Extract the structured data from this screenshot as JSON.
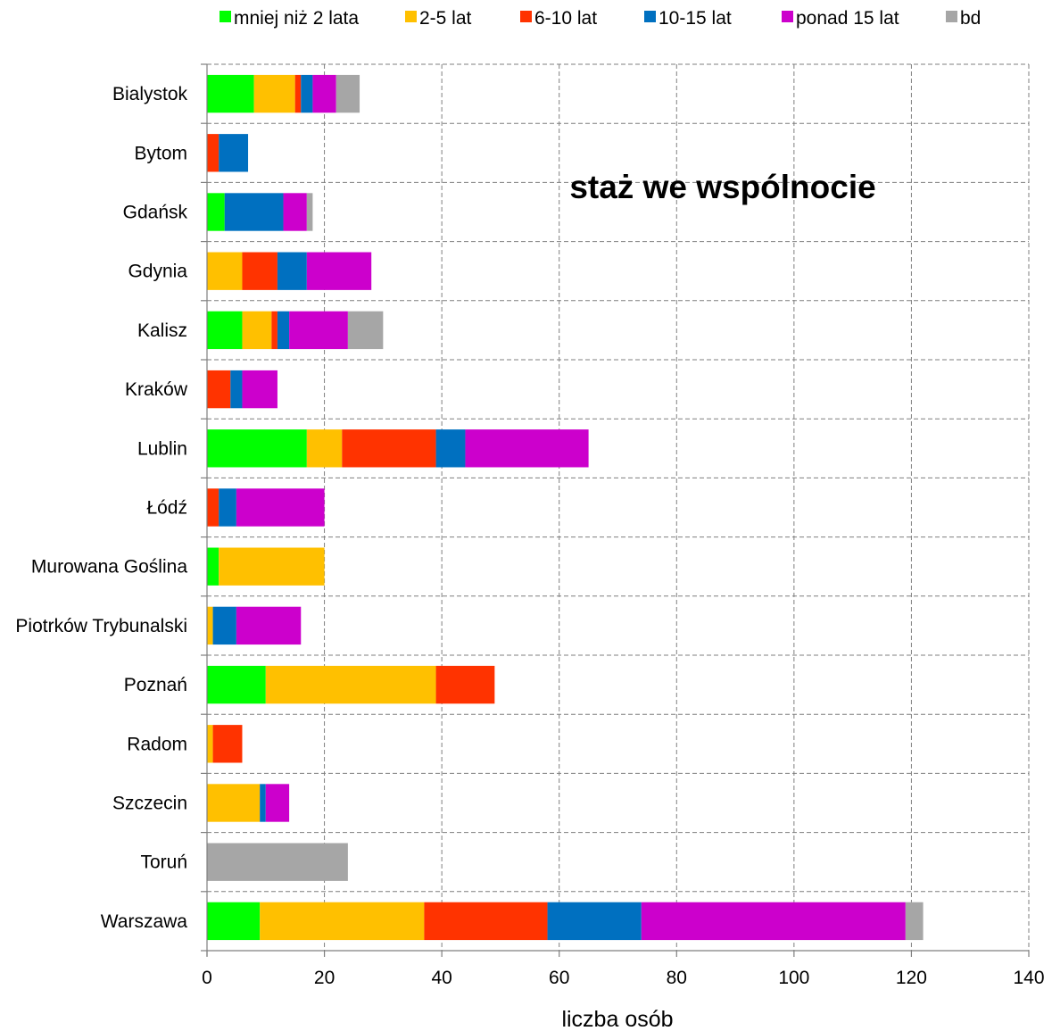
{
  "chart_data": {
    "type": "bar",
    "orientation": "horizontal",
    "stacked": true,
    "title": "staż we wspólnocie",
    "xlabel": "liczba osób",
    "ylabel": "",
    "xlim": [
      0,
      140
    ],
    "xticks": [
      0,
      20,
      40,
      60,
      80,
      100,
      120,
      140
    ],
    "grid": true,
    "legend_position": "top",
    "categories": [
      "Bialystok",
      "Bytom",
      "Gdańsk",
      "Gdynia",
      "Kalisz",
      "Kraków",
      "Lublin",
      "Łódź",
      "Murowana Goślina",
      "Piotrków Trybunalski",
      "Poznań",
      "Radom",
      "Szczecin",
      "Toruń",
      "Warszawa"
    ],
    "series": [
      {
        "name": "mniej niż 2 lata",
        "color": "#00ff00",
        "values": [
          8,
          0,
          3,
          0,
          6,
          0,
          17,
          0,
          2,
          0,
          10,
          0,
          0,
          0,
          9
        ]
      },
      {
        "name": "2-5 lat",
        "color": "#ffc000",
        "values": [
          7,
          0,
          0,
          6,
          5,
          0,
          6,
          0,
          18,
          1,
          29,
          1,
          9,
          0,
          28
        ]
      },
      {
        "name": "6-10 lat",
        "color": "#ff3300",
        "values": [
          1,
          2,
          0,
          6,
          1,
          4,
          16,
          2,
          0,
          0,
          10,
          5,
          0,
          0,
          21
        ]
      },
      {
        "name": "10-15 lat",
        "color": "#0070c0",
        "values": [
          2,
          5,
          10,
          5,
          2,
          2,
          5,
          3,
          0,
          4,
          0,
          0,
          1,
          0,
          16
        ]
      },
      {
        "name": "ponad 15 lat",
        "color": "#cc00cc",
        "values": [
          4,
          0,
          4,
          11,
          10,
          6,
          21,
          15,
          0,
          11,
          0,
          0,
          4,
          0,
          45
        ]
      },
      {
        "name": "bd",
        "color": "#a6a6a6",
        "values": [
          4,
          0,
          1,
          0,
          6,
          0,
          0,
          0,
          0,
          0,
          0,
          0,
          0,
          24,
          3
        ]
      }
    ]
  }
}
